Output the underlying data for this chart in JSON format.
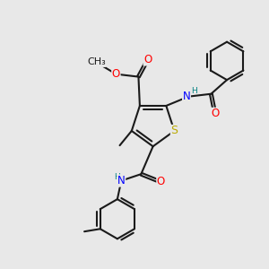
{
  "bg_color": "#e8e8e8",
  "bond_color": "#1a1a1a",
  "bond_width": 1.5,
  "atom_colors": {
    "O": "#ff0000",
    "N": "#0000ff",
    "S": "#bbaa00",
    "H": "#008080",
    "C": "#1a1a1a"
  },
  "font_size": 8.5,
  "figsize": [
    3.0,
    3.0
  ],
  "dpi": 100
}
